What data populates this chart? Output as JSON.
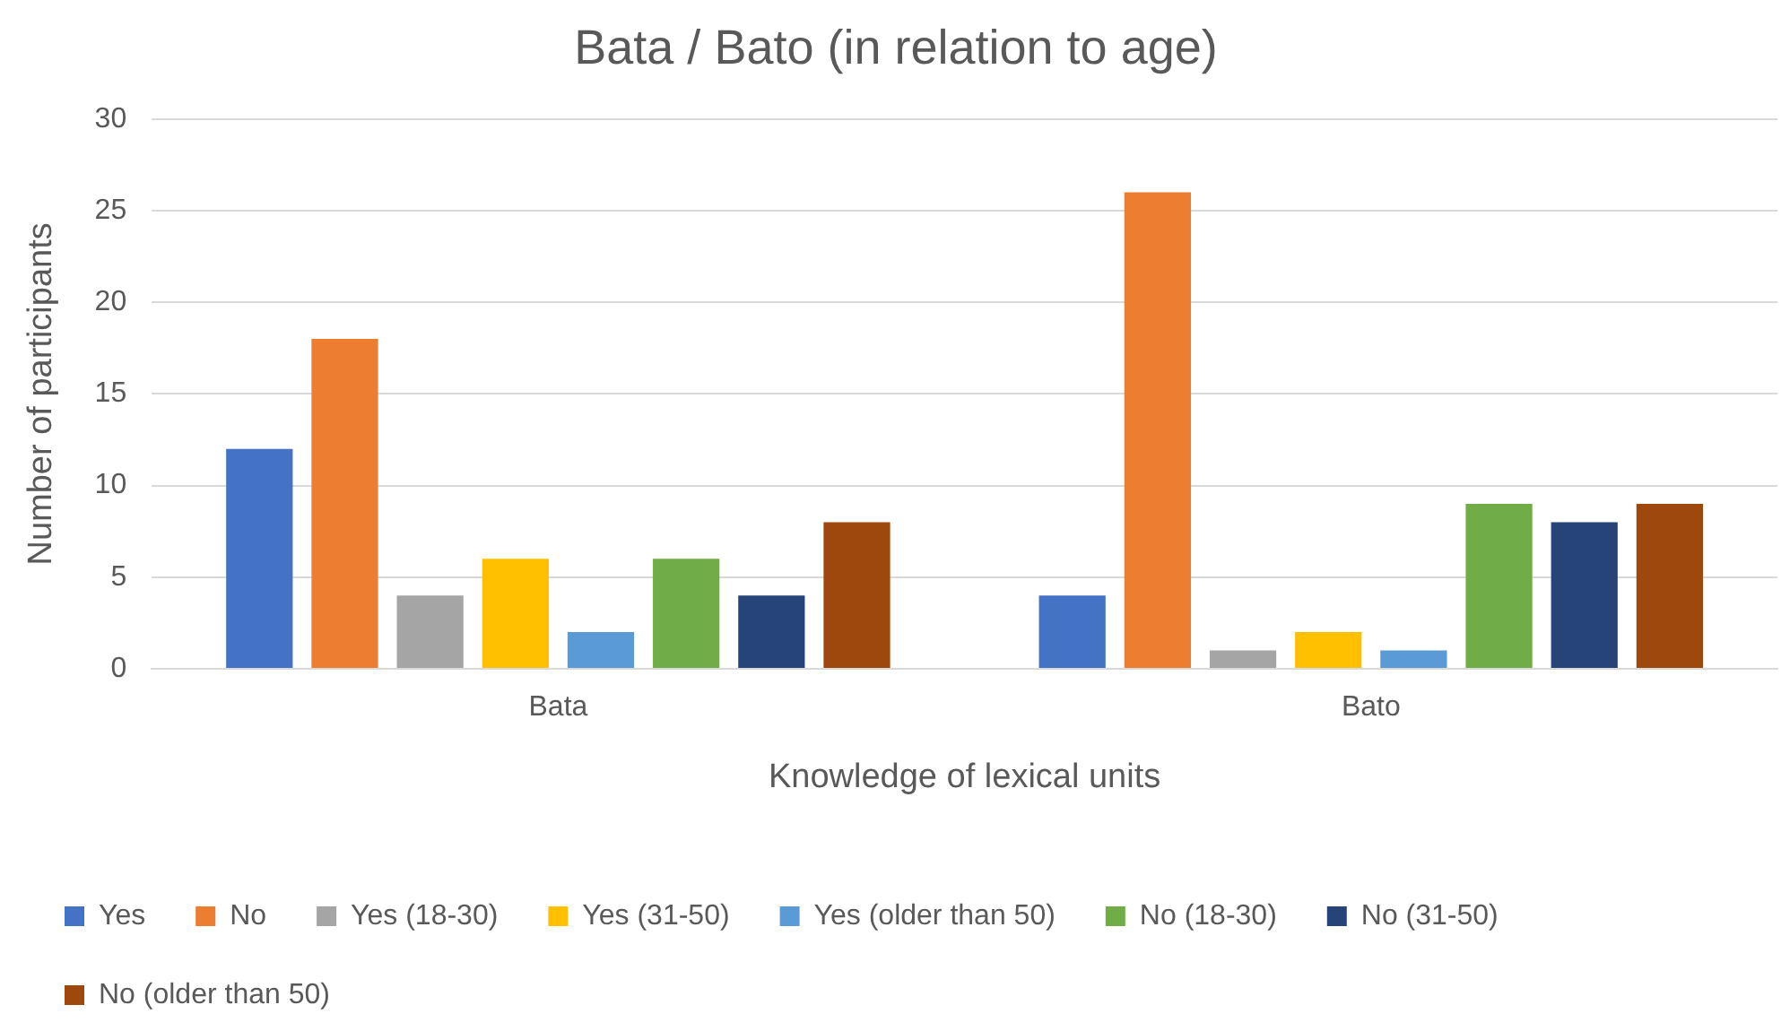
{
  "chart_data": {
    "type": "bar",
    "title": "Bata / Bato (in relation to age)",
    "xlabel": "Knowledge of lexical units",
    "ylabel": "Number of participants",
    "categories": [
      "Bata",
      "Bato"
    ],
    "series": [
      {
        "name": "Yes",
        "color": "#4472c4",
        "values": [
          12,
          4
        ]
      },
      {
        "name": "No",
        "color": "#ed7d31",
        "values": [
          18,
          26
        ]
      },
      {
        "name": "Yes (18-30)",
        "color": "#a5a5a5",
        "values": [
          4,
          1
        ]
      },
      {
        "name": "Yes (31-50)",
        "color": "#ffc000",
        "values": [
          6,
          2
        ]
      },
      {
        "name": "Yes (older than 50)",
        "color": "#5b9bd5",
        "values": [
          2,
          1
        ]
      },
      {
        "name": "No (18-30)",
        "color": "#70ad47",
        "values": [
          6,
          9
        ]
      },
      {
        "name": "No (31-50)",
        "color": "#264478",
        "values": [
          4,
          8
        ]
      },
      {
        "name": "No (older than 50)",
        "color": "#9e480e",
        "values": [
          8,
          9
        ]
      }
    ],
    "ylim": [
      0,
      30
    ],
    "yticks": [
      0,
      5,
      10,
      15,
      20,
      25,
      30
    ],
    "grid": "y",
    "legend": "bottom"
  }
}
